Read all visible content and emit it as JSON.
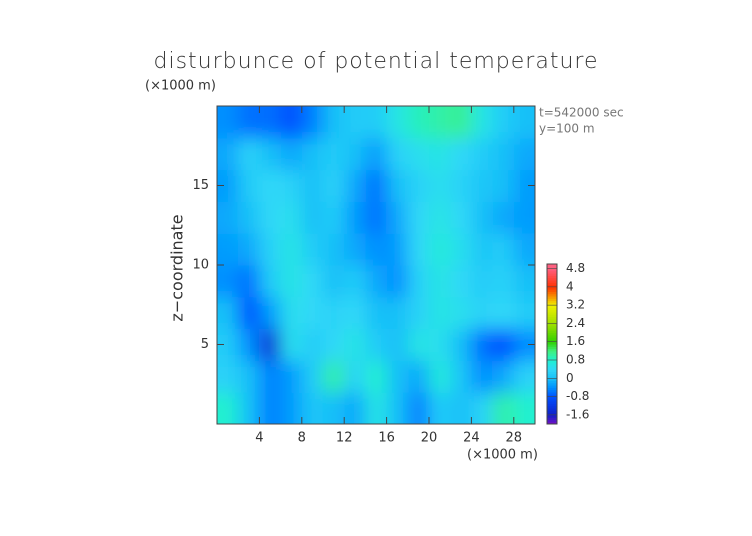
{
  "chart_data": {
    "type": "contour",
    "title": "disturbunce of potential temperature",
    "ylabel": "z−coordinate",
    "yunit": "(×1000 m)",
    "xunit": "(×1000 m)",
    "annotations": [
      "t=542000 sec",
      "y=100 m"
    ],
    "x": [
      1,
      3,
      5,
      7,
      9,
      11,
      13,
      15,
      17,
      19,
      21,
      23,
      25,
      27,
      29
    ],
    "y": [
      1,
      3,
      5,
      7,
      9,
      11,
      13,
      15,
      17,
      19
    ],
    "values": [
      [
        0.8,
        0.0,
        -0.5,
        -0.3,
        0.1,
        0.0,
        -0.2,
        0.6,
        0.0,
        -0.5,
        0.2,
        0.0,
        0.3,
        1.0,
        0.8
      ],
      [
        0.3,
        0.0,
        -0.5,
        -0.3,
        0.2,
        1.0,
        0.3,
        0.8,
        0.0,
        -0.2,
        0.7,
        0.1,
        -0.4,
        -0.2,
        0.3
      ],
      [
        0.2,
        -0.4,
        -1.4,
        0.5,
        0.2,
        0.4,
        0.6,
        0.2,
        0.0,
        0.6,
        0.5,
        0.0,
        -0.6,
        -0.8,
        -0.4
      ],
      [
        0.0,
        -0.8,
        -0.3,
        0.5,
        0.4,
        0.3,
        0.4,
        0.0,
        0.0,
        0.3,
        0.6,
        0.5,
        0.3,
        0.4,
        0.2
      ],
      [
        -0.4,
        -0.6,
        0.2,
        0.6,
        0.4,
        0.0,
        0.2,
        -0.2,
        -0.4,
        0.3,
        0.6,
        0.4,
        0.2,
        0.3,
        0.0
      ],
      [
        -0.3,
        -0.2,
        0.3,
        0.6,
        0.2,
        0.0,
        -0.2,
        -0.4,
        -0.3,
        0.4,
        0.7,
        0.5,
        0.1,
        0.2,
        -0.2
      ],
      [
        -0.2,
        0.0,
        0.4,
        0.5,
        0.0,
        0.2,
        -0.3,
        -0.6,
        -0.2,
        0.4,
        0.6,
        0.4,
        0.0,
        -0.2,
        -0.3
      ],
      [
        -0.3,
        0.2,
        0.4,
        0.3,
        0.0,
        0.3,
        -0.2,
        -0.6,
        0.0,
        0.3,
        0.5,
        0.3,
        0.1,
        0.0,
        -0.3
      ],
      [
        -0.2,
        0.3,
        0.0,
        -0.2,
        0.0,
        0.2,
        0.0,
        -0.3,
        0.3,
        0.5,
        0.6,
        0.4,
        0.2,
        0.0,
        -0.2
      ],
      [
        -0.4,
        -0.6,
        -0.6,
        -0.8,
        -0.5,
        0.0,
        0.2,
        0.2,
        0.6,
        0.9,
        1.0,
        1.1,
        0.6,
        0.2,
        0.0
      ]
    ],
    "xlim": [
      0,
      30
    ],
    "xticks": [
      4,
      8,
      12,
      16,
      20,
      24,
      28
    ],
    "ylim": [
      0,
      20
    ],
    "yticks": [
      5,
      10,
      15
    ],
    "clim": [
      -2,
      5
    ],
    "cticks": [
      -1.6,
      -0.8,
      0,
      0.8,
      1.6,
      2.4,
      3.2,
      4,
      4.8
    ],
    "colormap": [
      {
        "value": -2,
        "color": "#7a10c8"
      },
      {
        "value": -1.6,
        "color": "#1020c8"
      },
      {
        "value": -0.8,
        "color": "#0050ff"
      },
      {
        "value": -0.4,
        "color": "#0090ff"
      },
      {
        "value": 0,
        "color": "#18c0f8"
      },
      {
        "value": 0.4,
        "color": "#30d8f8"
      },
      {
        "value": 0.8,
        "color": "#20f0d0"
      },
      {
        "value": 1.2,
        "color": "#40f080"
      },
      {
        "value": 1.6,
        "color": "#30d000"
      },
      {
        "value": 2.4,
        "color": "#a0e000"
      },
      {
        "value": 3.2,
        "color": "#f0f000"
      },
      {
        "value": 4,
        "color": "#ff3000"
      },
      {
        "value": 4.8,
        "color": "#ff6080"
      }
    ]
  }
}
